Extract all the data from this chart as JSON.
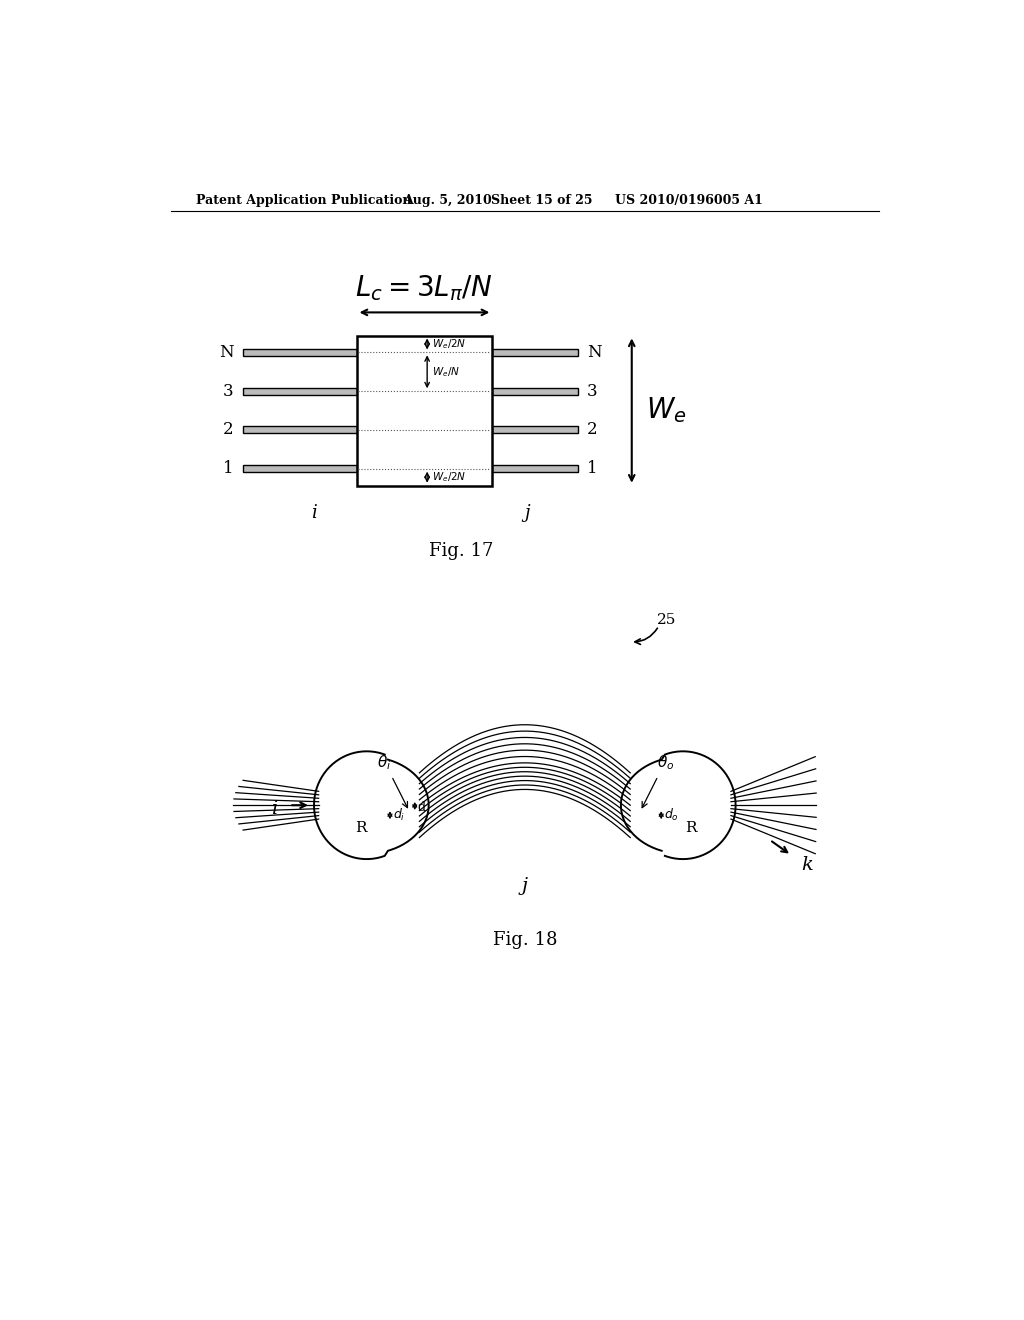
{
  "bg_color": "#ffffff",
  "header_text": "Patent Application Publication",
  "header_date": "Aug. 5, 2010",
  "header_sheet": "Sheet 15 of 25",
  "header_patent": "US 2010/0196005 A1",
  "fig17_label": "Fig. 17",
  "fig18_label": "Fig. 18",
  "line_color": "#000000",
  "text_color": "#000000",
  "gray_color": "#888888"
}
